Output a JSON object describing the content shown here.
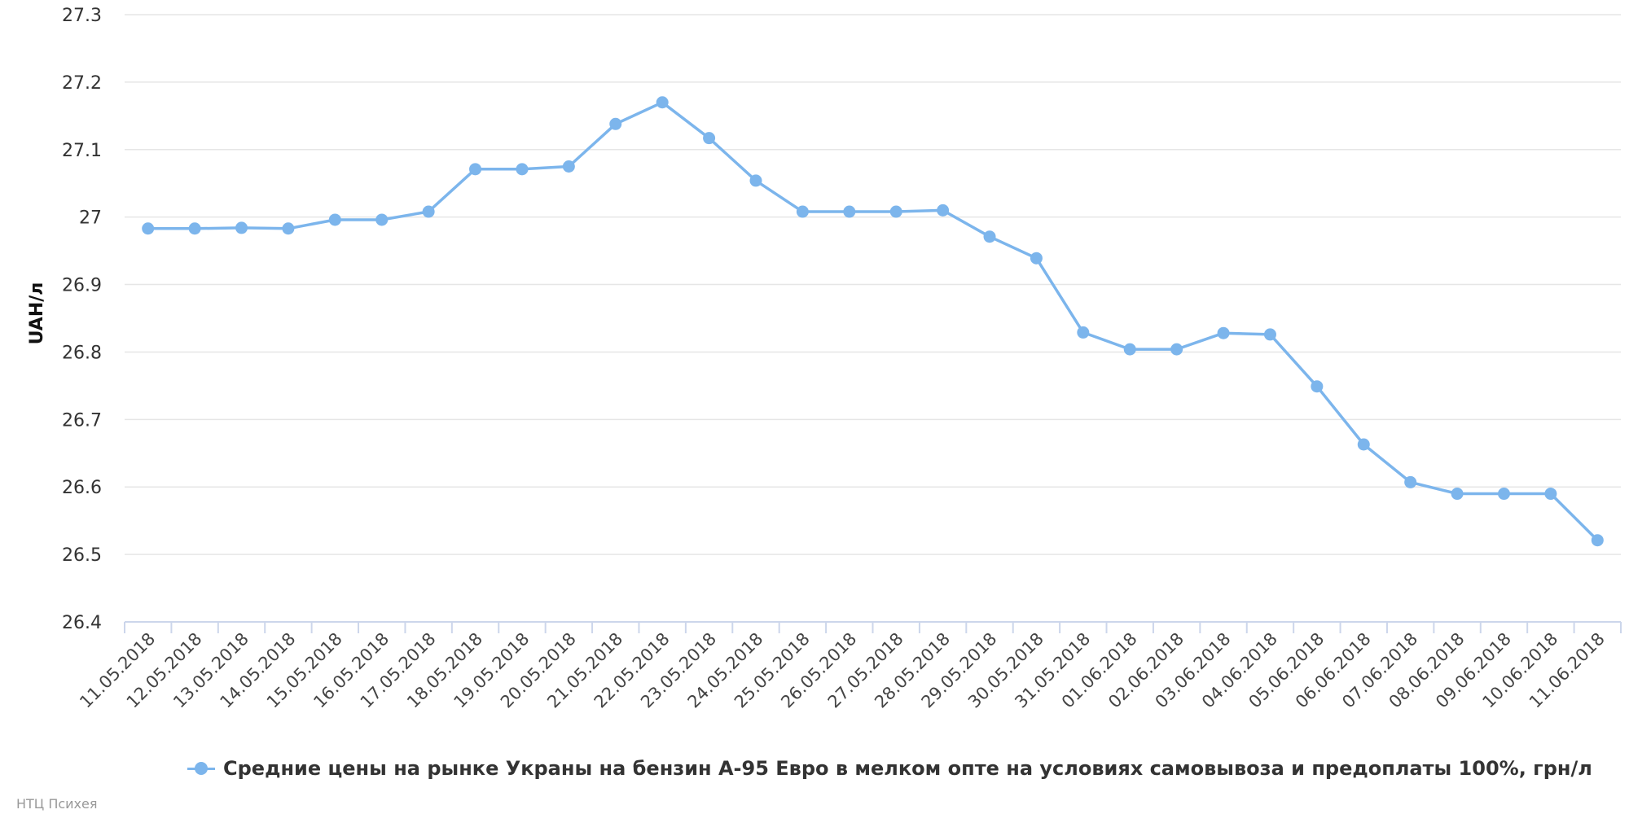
{
  "chart_data": {
    "type": "line",
    "ylabel": "UAH/л",
    "ylim": [
      26.4,
      27.3
    ],
    "yticks": [
      "26.4",
      "26.5",
      "26.6",
      "26.7",
      "26.8",
      "26.9",
      "27",
      "27.1",
      "27.2",
      "27.3"
    ],
    "grid": true,
    "legend_position": "bottom",
    "categories": [
      "11.05.2018",
      "12.05.2018",
      "13.05.2018",
      "14.05.2018",
      "15.05.2018",
      "16.05.2018",
      "17.05.2018",
      "18.05.2018",
      "19.05.2018",
      "20.05.2018",
      "21.05.2018",
      "22.05.2018",
      "23.05.2018",
      "24.05.2018",
      "25.05.2018",
      "26.05.2018",
      "27.05.2018",
      "28.05.2018",
      "29.05.2018",
      "30.05.2018",
      "31.05.2018",
      "01.06.2018",
      "02.06.2018",
      "03.06.2018",
      "04.06.2018",
      "05.06.2018",
      "06.06.2018",
      "07.06.2018",
      "08.06.2018",
      "09.06.2018",
      "10.06.2018",
      "11.06.2018"
    ],
    "series": [
      {
        "name": "Средние цены на рынке Украны на бензин А-95 Евро в мелком опте на условиях самовывоза и предоплаты 100%, грн/л",
        "color": "#7cb5ec",
        "values": [
          26.983,
          26.983,
          26.984,
          26.983,
          26.996,
          26.996,
          27.008,
          27.071,
          27.071,
          27.075,
          27.138,
          27.17,
          27.117,
          27.054,
          27.008,
          27.008,
          27.008,
          27.01,
          26.971,
          26.939,
          26.829,
          26.804,
          26.804,
          26.828,
          26.826,
          26.749,
          26.663,
          26.607,
          26.59,
          26.59,
          26.59,
          26.521
        ]
      }
    ]
  },
  "credits": "НТЦ Психея"
}
